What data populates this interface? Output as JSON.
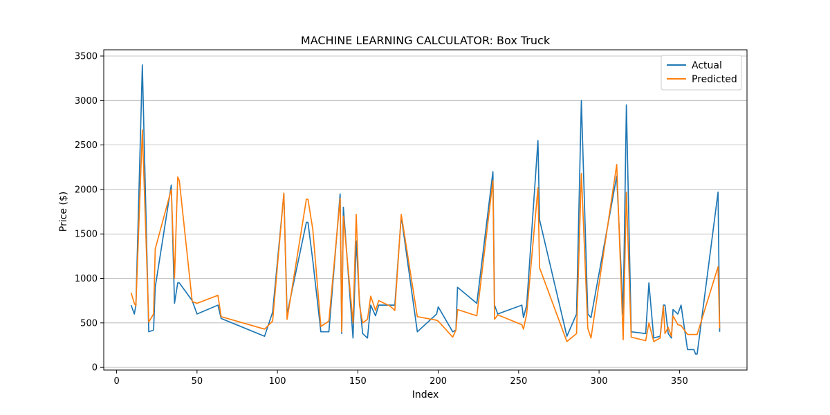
{
  "chart_data": {
    "type": "line",
    "title": "MACHINE LEARNING CALCULATOR: Box Truck",
    "xlabel": "Index",
    "ylabel": "Price ($)",
    "xlim": [
      -8,
      392
    ],
    "ylim": [
      -30,
      3570
    ],
    "xticks": [
      0,
      50,
      100,
      150,
      200,
      250,
      300,
      350
    ],
    "yticks": [
      0,
      500,
      1000,
      1500,
      2000,
      2500,
      3000,
      3500
    ],
    "grid": "y",
    "legend_position": "top-right",
    "x": [
      9,
      11,
      12,
      16,
      20,
      23,
      24,
      34,
      36,
      38,
      39,
      47,
      50,
      63,
      65,
      92,
      97,
      104,
      106,
      118,
      119,
      122,
      127,
      132,
      139,
      140,
      141,
      147,
      149,
      151,
      153,
      156,
      158,
      161,
      163,
      170,
      173,
      177,
      187,
      199,
      200,
      209,
      211,
      212,
      224,
      234,
      235,
      237,
      252,
      253,
      255,
      262,
      263,
      280,
      286,
      289,
      293,
      295,
      311,
      315,
      317,
      320,
      329,
      331,
      334,
      338,
      340,
      341,
      343,
      345,
      346,
      349,
      351,
      355,
      359,
      360,
      361,
      374,
      375
    ],
    "series": [
      {
        "name": "Actual",
        "color": "#1f77b4",
        "values": [
          700,
          600,
          700,
          3400,
          400,
          420,
          900,
          2050,
          720,
          950,
          950,
          750,
          600,
          700,
          550,
          350,
          620,
          1950,
          600,
          1630,
          1630,
          1200,
          400,
          400,
          1950,
          380,
          1800,
          330,
          1420,
          750,
          380,
          330,
          700,
          580,
          700,
          700,
          700,
          1700,
          400,
          600,
          680,
          400,
          420,
          900,
          720,
          2200,
          700,
          600,
          700,
          560,
          700,
          2550,
          1660,
          350,
          600,
          3000,
          600,
          560,
          2150,
          600,
          2950,
          400,
          380,
          950,
          330,
          350,
          700,
          700,
          380,
          330,
          650,
          600,
          700,
          200,
          200,
          150,
          150,
          1970,
          400
        ]
      },
      {
        "name": "Predicted",
        "color": "#ff7f0e",
        "values": [
          840,
          720,
          690,
          2670,
          510,
          600,
          1330,
          2000,
          1000,
          2140,
          2100,
          740,
          720,
          810,
          570,
          430,
          520,
          1960,
          540,
          1890,
          1890,
          1550,
          460,
          520,
          1900,
          400,
          1700,
          500,
          1720,
          700,
          500,
          540,
          800,
          640,
          750,
          690,
          640,
          1720,
          570,
          530,
          520,
          340,
          420,
          650,
          580,
          2100,
          540,
          590,
          480,
          430,
          600,
          2020,
          1120,
          290,
          380,
          2180,
          440,
          330,
          2280,
          310,
          1970,
          340,
          300,
          500,
          290,
          330,
          690,
          380,
          450,
          350,
          580,
          480,
          470,
          370,
          370,
          370,
          370,
          1130,
          440
        ]
      }
    ]
  }
}
